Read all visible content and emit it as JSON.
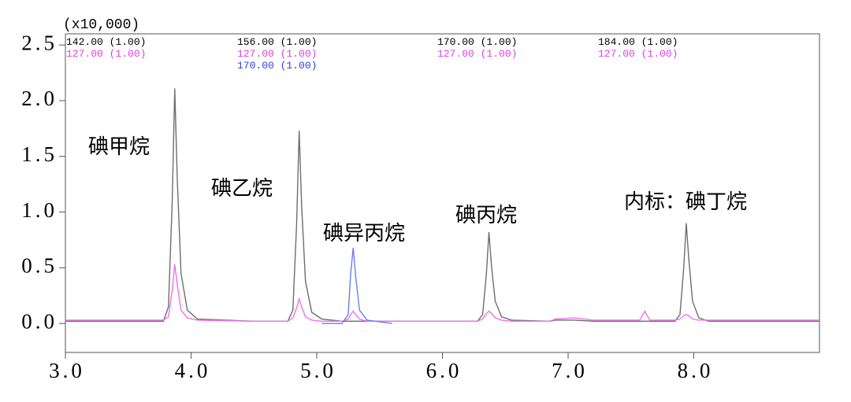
{
  "chart_data": {
    "type": "line",
    "unit_label": "(x10,000)",
    "x": [
      3.0,
      3.5,
      3.78,
      3.82,
      3.85,
      3.87,
      3.89,
      3.92,
      3.97,
      4.05,
      4.5,
      4.77,
      4.81,
      4.84,
      4.86,
      4.88,
      4.91,
      4.96,
      5.04,
      5.2,
      5.25,
      5.27,
      5.29,
      5.31,
      5.34,
      5.4,
      5.6,
      6.0,
      6.28,
      6.32,
      6.35,
      6.37,
      6.39,
      6.42,
      6.47,
      6.55,
      6.85,
      6.9,
      7.05,
      7.2,
      7.5,
      7.57,
      7.61,
      7.65,
      7.85,
      7.89,
      7.92,
      7.94,
      7.96,
      7.99,
      8.04,
      8.12,
      9.0
    ],
    "series": [
      {
        "color": "#6e6e6e",
        "values": [
          0.02,
          0.02,
          0.02,
          0.15,
          1.1,
          2.11,
          1.3,
          0.45,
          0.12,
          0.04,
          0.02,
          0.02,
          0.12,
          0.9,
          1.73,
          1.05,
          0.38,
          0.1,
          0.04,
          0.02,
          0.02,
          0.02,
          0.02,
          0.02,
          0.02,
          0.02,
          0.02,
          0.02,
          0.02,
          0.08,
          0.45,
          0.82,
          0.52,
          0.2,
          0.06,
          0.03,
          0.02,
          0.03,
          0.03,
          0.02,
          0.02,
          0.02,
          0.02,
          0.02,
          0.02,
          0.08,
          0.5,
          0.9,
          0.58,
          0.2,
          0.05,
          0.02,
          0.02
        ]
      },
      {
        "color": "#f070f0",
        "values": [
          0.03,
          0.03,
          0.03,
          0.06,
          0.3,
          0.53,
          0.35,
          0.12,
          0.05,
          0.03,
          0.02,
          0.02,
          0.05,
          0.14,
          0.22,
          0.15,
          0.06,
          0.03,
          0.02,
          0.02,
          0.04,
          0.08,
          0.11,
          0.08,
          0.04,
          0.02,
          0.02,
          0.02,
          0.02,
          0.04,
          0.09,
          0.11,
          0.09,
          0.05,
          0.03,
          0.02,
          0.02,
          0.04,
          0.05,
          0.03,
          0.03,
          0.03,
          0.11,
          0.03,
          0.03,
          0.04,
          0.07,
          0.08,
          0.07,
          0.04,
          0.03,
          0.03,
          0.03
        ]
      },
      {
        "color": "#6a7fe8",
        "values": [
          null,
          null,
          null,
          null,
          null,
          null,
          null,
          null,
          null,
          null,
          null,
          null,
          null,
          null,
          null,
          null,
          null,
          null,
          0.0,
          0.0,
          0.08,
          0.45,
          0.68,
          0.42,
          0.12,
          0.03,
          0.0,
          null,
          null,
          null,
          null,
          null,
          null,
          null,
          null,
          null,
          null,
          null,
          null,
          null,
          null,
          null,
          null,
          null,
          null,
          null,
          null,
          null,
          null,
          null,
          null,
          null,
          null
        ]
      }
    ],
    "xlim": [
      3.0,
      9.0
    ],
    "ylim": [
      -0.26,
      2.6
    ],
    "xticks": [
      {
        "value": 3.0,
        "label": "3.0"
      },
      {
        "value": 4.0,
        "label": "4.0"
      },
      {
        "value": 5.0,
        "label": "5.0"
      },
      {
        "value": 6.0,
        "label": "6.0"
      },
      {
        "value": 7.0,
        "label": "7.0"
      },
      {
        "value": 8.0,
        "label": "8.0"
      }
    ],
    "yticks": [
      {
        "value": 0,
        "label": "0.0"
      },
      0.5,
      {
        "value": 1,
        "label": "1.0"
      },
      1.5,
      {
        "value": 2,
        "label": "2.0"
      },
      2.5
    ],
    "trace_labels": [
      [
        {
          "text": "142.00 (1.00)",
          "color": "#000000"
        },
        {
          "text": "127.00 (1.00)",
          "color": "#e040e0"
        }
      ],
      [
        {
          "text": "156.00 (1.00)",
          "color": "#000000"
        },
        {
          "text": "127.00 (1.00)",
          "color": "#e040e0"
        },
        {
          "text": "170.00 (1.00)",
          "color": "#3040e0"
        }
      ],
      [
        {
          "text": "170.00 (1.00)",
          "color": "#000000"
        },
        {
          "text": "127.00 (1.00)",
          "color": "#e040e0"
        }
      ],
      [
        {
          "text": "184.00 (1.00)",
          "color": "#000000"
        },
        {
          "text": "127.00 (1.00)",
          "color": "#e040e0"
        }
      ]
    ],
    "annotations": [
      "碘甲烷",
      "碘乙烷",
      "碘异丙烷",
      "碘丙烷",
      "内标：碘丁烷"
    ]
  }
}
